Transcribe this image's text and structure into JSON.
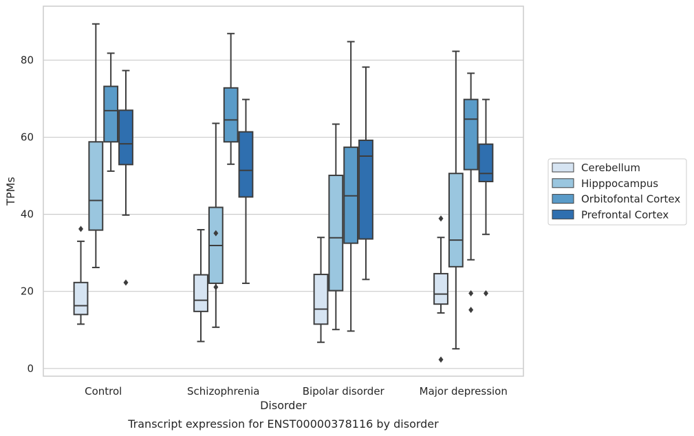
{
  "chart_data": {
    "type": "box",
    "caption": "Transcript expression for ENST00000378116 by disorder",
    "xlabel": "Disorder",
    "ylabel": "TPMs",
    "ylim": [
      -2,
      94
    ],
    "yticks": [
      0,
      20,
      40,
      60,
      80
    ],
    "grid": "horizontal",
    "legend_position": "right",
    "categories": [
      "Control",
      "Schizophrenia",
      "Bipolar disorder",
      "Major depression"
    ],
    "series": [
      {
        "name": "Cerebellum",
        "color": "#d6e4f2",
        "boxes": [
          {
            "whisker_low": 11.5,
            "q1": 14,
            "median": 16.3,
            "q3": 22.3,
            "whisker_high": 33,
            "outliers": [
              36.2
            ]
          },
          {
            "whisker_low": 7,
            "q1": 14.8,
            "median": 17.7,
            "q3": 24.3,
            "whisker_high": 36,
            "outliers": []
          },
          {
            "whisker_low": 6.8,
            "q1": 11.5,
            "median": 15.4,
            "q3": 24.4,
            "whisker_high": 34,
            "outliers": []
          },
          {
            "whisker_low": 14.4,
            "q1": 16.7,
            "median": 19.3,
            "q3": 24.6,
            "whisker_high": 34,
            "outliers": [
              38.9,
              2.3
            ]
          }
        ]
      },
      {
        "name": "Hipppocampus",
        "color": "#9ac6df",
        "boxes": [
          {
            "whisker_low": 26.2,
            "q1": 35.9,
            "median": 43.6,
            "q3": 58.8,
            "whisker_high": 89.4,
            "outliers": []
          },
          {
            "whisker_low": 10.7,
            "q1": 22.1,
            "median": 31.9,
            "q3": 41.8,
            "whisker_high": 63.6,
            "outliers": [
              35.1,
              21.1
            ]
          },
          {
            "whisker_low": 10.1,
            "q1": 20.2,
            "median": 33.9,
            "q3": 50.1,
            "whisker_high": 63.4,
            "outliers": []
          },
          {
            "whisker_low": 5.1,
            "q1": 26.4,
            "median": 33.3,
            "q3": 50.6,
            "whisker_high": 82.3,
            "outliers": []
          }
        ]
      },
      {
        "name": "Orbitofontal Cortex",
        "color": "#5a9bc8",
        "boxes": [
          {
            "whisker_low": 51.2,
            "q1": 58.8,
            "median": 66.9,
            "q3": 73.2,
            "whisker_high": 81.8,
            "outliers": []
          },
          {
            "whisker_low": 53,
            "q1": 58.8,
            "median": 64.5,
            "q3": 72.8,
            "whisker_high": 86.9,
            "outliers": []
          },
          {
            "whisker_low": 9.7,
            "q1": 32.5,
            "median": 44.8,
            "q3": 57.4,
            "whisker_high": 84.8,
            "outliers": []
          },
          {
            "whisker_low": 28.2,
            "q1": 51.6,
            "median": 64.7,
            "q3": 69.8,
            "whisker_high": 76.6,
            "outliers": [
              19.5,
              15.2
            ]
          }
        ]
      },
      {
        "name": "Prefrontal Cortex",
        "color": "#2f6faf",
        "boxes": [
          {
            "whisker_low": 39.8,
            "q1": 52.9,
            "median": 58.3,
            "q3": 67,
            "whisker_high": 77.3,
            "outliers": [
              22.3
            ]
          },
          {
            "whisker_low": 22.1,
            "q1": 44.5,
            "median": 51.4,
            "q3": 61.4,
            "whisker_high": 69.8,
            "outliers": []
          },
          {
            "whisker_low": 23.1,
            "q1": 33.6,
            "median": 55.1,
            "q3": 59.2,
            "whisker_high": 78.2,
            "outliers": []
          },
          {
            "whisker_low": 34.8,
            "q1": 48.5,
            "median": 50.6,
            "q3": 58.2,
            "whisker_high": 69.8,
            "outliers": [
              19.5
            ]
          }
        ]
      }
    ]
  }
}
